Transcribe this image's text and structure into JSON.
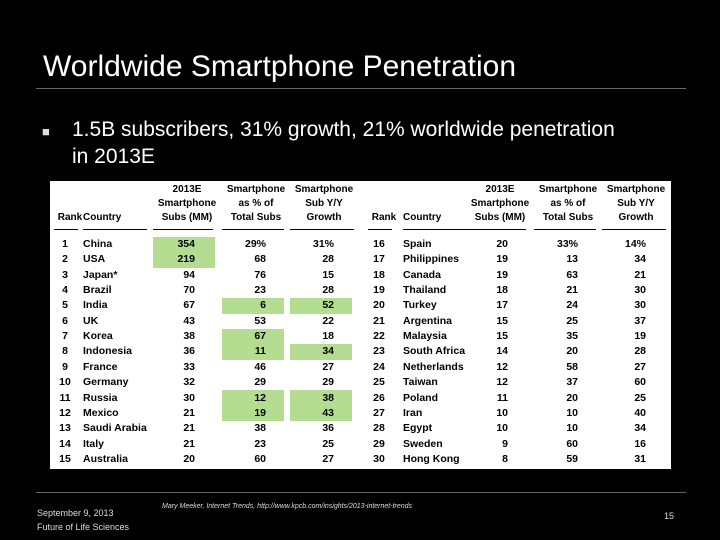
{
  "slide": {
    "title": "Worldwide Smartphone Penetration",
    "bullet": "1.5B subscribers, 31% growth, 21% worldwide penetration in 2013E",
    "footer_date": "September 9, 2013",
    "footer_org": "Future of Life Sciences",
    "source": "Mary Meeker, Internet Trends, http://www.kpcb.com/insights/2013-internet-trends",
    "page_number": "15"
  },
  "table": {
    "headers": {
      "rank": "Rank",
      "country": "Country",
      "subs": "2013E\nSmartphone\nSubs (MM)",
      "pct": "Smartphone\nas % of\nTotal Subs",
      "growth": "Smartphone\nSub Y/Y\nGrowth"
    },
    "left": [
      {
        "rank": "1",
        "country": "China",
        "subs": "354",
        "pct": "29%",
        "growth": "31%",
        "hl_subs": true,
        "hl_pct": false,
        "hl_growth": false
      },
      {
        "rank": "2",
        "country": "USA",
        "subs": "219",
        "pct": "68",
        "growth": "28",
        "hl_subs": true,
        "hl_pct": false,
        "hl_growth": false
      },
      {
        "rank": "3",
        "country": "Japan*",
        "subs": "94",
        "pct": "76",
        "growth": "15",
        "hl_subs": false,
        "hl_pct": false,
        "hl_growth": false
      },
      {
        "rank": "4",
        "country": "Brazil",
        "subs": "70",
        "pct": "23",
        "growth": "28",
        "hl_subs": false,
        "hl_pct": false,
        "hl_growth": false
      },
      {
        "rank": "5",
        "country": "India",
        "subs": "67",
        "pct": "6",
        "growth": "52",
        "hl_subs": false,
        "hl_pct": true,
        "hl_growth": true
      },
      {
        "rank": "6",
        "country": "UK",
        "subs": "43",
        "pct": "53",
        "growth": "22",
        "hl_subs": false,
        "hl_pct": false,
        "hl_growth": false
      },
      {
        "rank": "7",
        "country": "Korea",
        "subs": "38",
        "pct": "67",
        "growth": "18",
        "hl_subs": false,
        "hl_pct": true,
        "hl_growth": false
      },
      {
        "rank": "8",
        "country": "Indonesia",
        "subs": "36",
        "pct": "11",
        "growth": "34",
        "hl_subs": false,
        "hl_pct": true,
        "hl_growth": true
      },
      {
        "rank": "9",
        "country": "France",
        "subs": "33",
        "pct": "46",
        "growth": "27",
        "hl_subs": false,
        "hl_pct": false,
        "hl_growth": false
      },
      {
        "rank": "10",
        "country": "Germany",
        "subs": "32",
        "pct": "29",
        "growth": "29",
        "hl_subs": false,
        "hl_pct": false,
        "hl_growth": false
      },
      {
        "rank": "11",
        "country": "Russia",
        "subs": "30",
        "pct": "12",
        "growth": "38",
        "hl_subs": false,
        "hl_pct": true,
        "hl_growth": true
      },
      {
        "rank": "12",
        "country": "Mexico",
        "subs": "21",
        "pct": "19",
        "growth": "43",
        "hl_subs": false,
        "hl_pct": true,
        "hl_growth": true
      },
      {
        "rank": "13",
        "country": "Saudi Arabia",
        "subs": "21",
        "pct": "38",
        "growth": "36",
        "hl_subs": false,
        "hl_pct": false,
        "hl_growth": false
      },
      {
        "rank": "14",
        "country": "Italy",
        "subs": "21",
        "pct": "23",
        "growth": "25",
        "hl_subs": false,
        "hl_pct": false,
        "hl_growth": false
      },
      {
        "rank": "15",
        "country": "Australia",
        "subs": "20",
        "pct": "60",
        "growth": "27",
        "hl_subs": false,
        "hl_pct": false,
        "hl_growth": false
      }
    ],
    "right": [
      {
        "rank": "16",
        "country": "Spain",
        "subs": "20",
        "pct": "33%",
        "growth": "14%",
        "hl_subs": false,
        "hl_pct": false,
        "hl_growth": false
      },
      {
        "rank": "17",
        "country": "Philippines",
        "subs": "19",
        "pct": "13",
        "growth": "34",
        "hl_subs": false,
        "hl_pct": false,
        "hl_growth": false
      },
      {
        "rank": "18",
        "country": "Canada",
        "subs": "19",
        "pct": "63",
        "growth": "21",
        "hl_subs": false,
        "hl_pct": false,
        "hl_growth": false
      },
      {
        "rank": "19",
        "country": "Thailand",
        "subs": "18",
        "pct": "21",
        "growth": "30",
        "hl_subs": false,
        "hl_pct": false,
        "hl_growth": false
      },
      {
        "rank": "20",
        "country": "Turkey",
        "subs": "17",
        "pct": "24",
        "growth": "30",
        "hl_subs": false,
        "hl_pct": false,
        "hl_growth": false
      },
      {
        "rank": "21",
        "country": "Argentina",
        "subs": "15",
        "pct": "25",
        "growth": "37",
        "hl_subs": false,
        "hl_pct": false,
        "hl_growth": false
      },
      {
        "rank": "22",
        "country": "Malaysia",
        "subs": "15",
        "pct": "35",
        "growth": "19",
        "hl_subs": false,
        "hl_pct": false,
        "hl_growth": false
      },
      {
        "rank": "23",
        "country": "South Africa",
        "subs": "14",
        "pct": "20",
        "growth": "28",
        "hl_subs": false,
        "hl_pct": false,
        "hl_growth": false
      },
      {
        "rank": "24",
        "country": "Netherlands",
        "subs": "12",
        "pct": "58",
        "growth": "27",
        "hl_subs": false,
        "hl_pct": false,
        "hl_growth": false
      },
      {
        "rank": "25",
        "country": "Taiwan",
        "subs": "12",
        "pct": "37",
        "growth": "60",
        "hl_subs": false,
        "hl_pct": false,
        "hl_growth": false
      },
      {
        "rank": "26",
        "country": "Poland",
        "subs": "11",
        "pct": "20",
        "growth": "25",
        "hl_subs": false,
        "hl_pct": false,
        "hl_growth": false
      },
      {
        "rank": "27",
        "country": "Iran",
        "subs": "10",
        "pct": "10",
        "growth": "40",
        "hl_subs": false,
        "hl_pct": false,
        "hl_growth": false
      },
      {
        "rank": "28",
        "country": "Egypt",
        "subs": "10",
        "pct": "10",
        "growth": "34",
        "hl_subs": false,
        "hl_pct": false,
        "hl_growth": false
      },
      {
        "rank": "29",
        "country": "Sweden",
        "subs": "9",
        "pct": "60",
        "growth": "16",
        "hl_subs": false,
        "hl_pct": false,
        "hl_growth": false
      },
      {
        "rank": "30",
        "country": "Hong Kong",
        "subs": "8",
        "pct": "59",
        "growth": "31",
        "hl_subs": false,
        "hl_pct": false,
        "hl_growth": false
      }
    ]
  }
}
